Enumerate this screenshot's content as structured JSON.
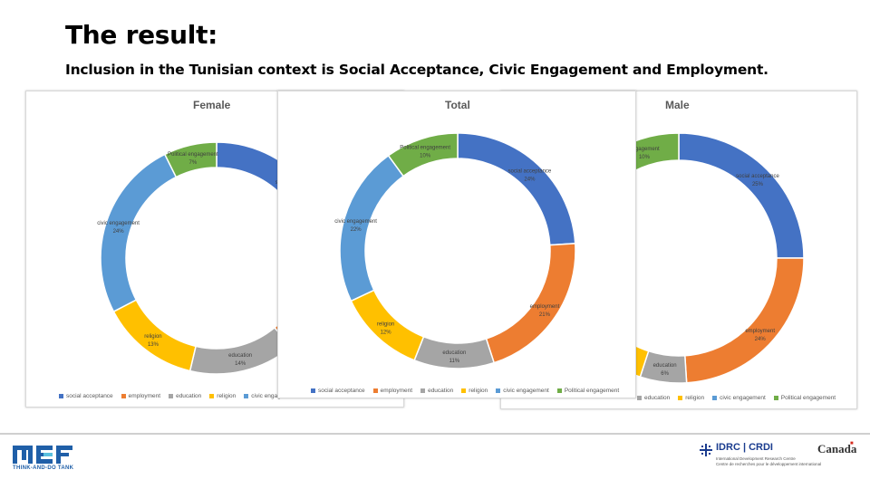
{
  "slide": {
    "title": "The result:",
    "subtitle": "Inclusion in the Tunisian context is Social Acceptance, Civic Engagement and Employment."
  },
  "chart_data": [
    {
      "id": "female",
      "type": "pie",
      "variant": "donut",
      "title": "Female",
      "categories": [
        "social acceptance",
        "employment",
        "education",
        "religion",
        "civic engagement",
        "Political engagement"
      ],
      "values": [
        24,
        13,
        14,
        13,
        24,
        7
      ],
      "data_labels": [
        {
          "name": "social accep",
          "value": ""
        },
        {
          "name": "",
          "value": ""
        },
        {
          "name": "education",
          "value": "14%"
        },
        {
          "name": "religion",
          "value": "13%"
        },
        {
          "name": "civic engagement",
          "value": "24%"
        },
        {
          "name": "Political engagement",
          "value": "7%"
        }
      ],
      "legend": [
        "social acceptance",
        "employment",
        "education",
        "religion",
        "civic engag"
      ],
      "legend_position": "bottom"
    },
    {
      "id": "male",
      "type": "pie",
      "variant": "donut",
      "title": "Male",
      "categories": [
        "social acceptance",
        "employment",
        "education",
        "religion",
        "civic engagement",
        "Political engagement"
      ],
      "values": [
        25,
        24,
        6,
        10,
        25,
        10
      ],
      "data_labels": [
        {
          "name": "social acceptance",
          "value": "25%"
        },
        {
          "name": "employment",
          "value": "24%"
        },
        {
          "name": "education",
          "value": "6%"
        },
        {
          "name": "",
          "value": ""
        },
        {
          "name": "",
          "value": ""
        },
        {
          "name": "engagement",
          "value": "10%"
        }
      ],
      "legend": [
        "education",
        "religion",
        "civic engagement",
        "Political engagement"
      ],
      "legend_position": "bottom"
    },
    {
      "id": "total",
      "type": "pie",
      "variant": "donut",
      "title": "Total",
      "categories": [
        "social acceptance",
        "employment",
        "education",
        "religion",
        "civic engagement",
        "Political engagement"
      ],
      "values": [
        24,
        21,
        11,
        12,
        22,
        10
      ],
      "data_labels": [
        {
          "name": "social acceptance",
          "value": "24%"
        },
        {
          "name": "employment",
          "value": "21%"
        },
        {
          "name": "education",
          "value": "11%"
        },
        {
          "name": "religion",
          "value": "12%"
        },
        {
          "name": "civic engagement",
          "value": "22%"
        },
        {
          "name": "Political engagement",
          "value": "10%"
        }
      ],
      "legend": [
        "social acceptance",
        "employment",
        "education",
        "religion",
        "civic engagement",
        "Political engagement"
      ],
      "legend_position": "bottom"
    }
  ],
  "colors": {
    "social acceptance": "#4472C4",
    "employment": "#ED7D31",
    "education": "#A5A5A5",
    "religion": "#FFC000",
    "civic engagement": "#5B9BD5",
    "Political engagement": "#70AD47"
  },
  "footer": {
    "mef_logo_text": "MEF",
    "mef_tagline": "THINK-AND-DO TANK",
    "idrc_text": "IDRC | CRDI",
    "idrc_small_1": "International Development Research Centre",
    "idrc_small_2": "Centre de recherches pour le développement international",
    "canada_text": "Canada"
  }
}
